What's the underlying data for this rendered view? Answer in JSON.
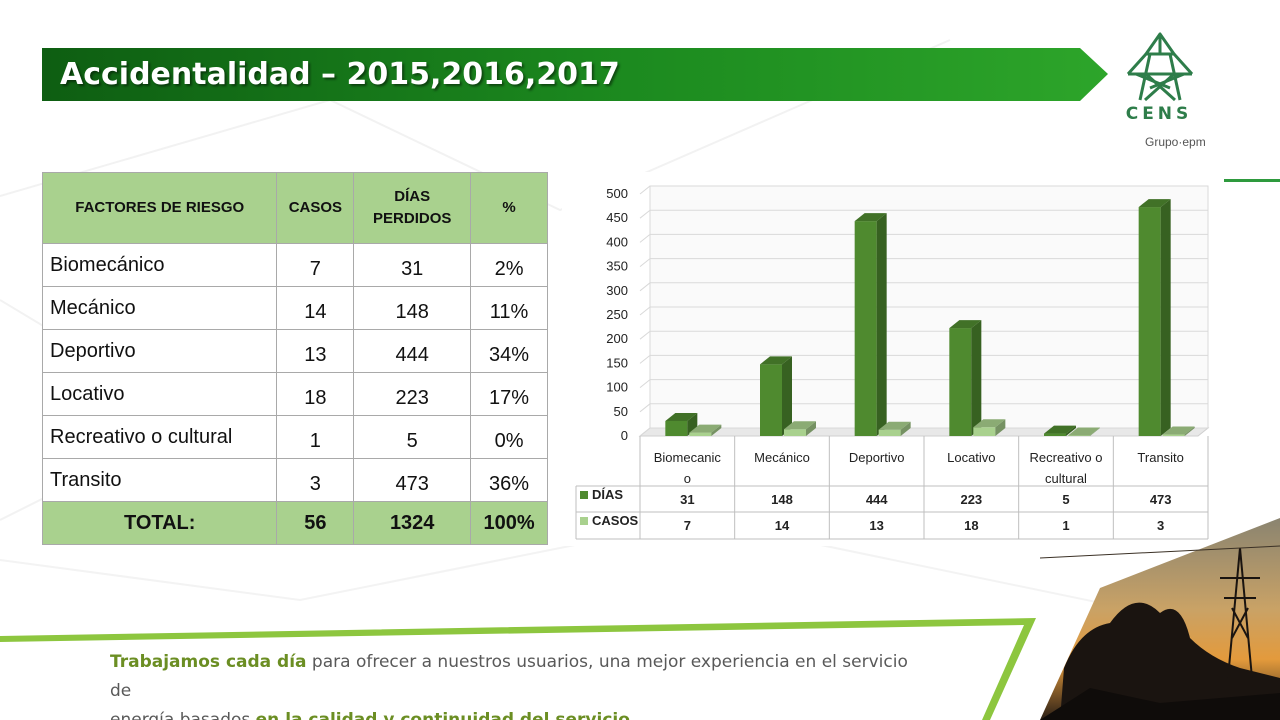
{
  "slide": {
    "title": "Accidentalidad – 2015,2016,2017",
    "colors": {
      "banner": "#1f8a1f",
      "banner_dark": "#0e5e12",
      "table_header": "#a9d18e",
      "accent_text": "#6b8e23"
    }
  },
  "logo": {
    "name": "CENS",
    "group": "Grupo·epm",
    "icon": "power-tower-icon"
  },
  "table": {
    "headers": {
      "factor": "FACTORES DE RIESGO",
      "casos": "CASOS",
      "dias_line1": "DÍAS",
      "dias_line2": "PERDIDOS",
      "pct": "%"
    },
    "rows": [
      {
        "factor": "Biomecánico",
        "casos": "7",
        "dias": "31",
        "pct": "2%"
      },
      {
        "factor": "Mecánico",
        "casos": "14",
        "dias": "148",
        "pct": "11%"
      },
      {
        "factor": "Deportivo",
        "casos": "13",
        "dias": "444",
        "pct": "34%"
      },
      {
        "factor": "Locativo",
        "casos": "18",
        "dias": "223",
        "pct": "17%"
      },
      {
        "factor": "Recreativo o cultural",
        "casos": "1",
        "dias": "5",
        "pct": "0%"
      },
      {
        "factor": "Transito",
        "casos": "3",
        "dias": "473",
        "pct": "36%"
      }
    ],
    "total": {
      "label": "TOTAL:",
      "casos": "56",
      "dias": "1324",
      "pct": "100%"
    }
  },
  "chart_data": {
    "type": "bar",
    "categories": [
      [
        "Biomecanic",
        "o"
      ],
      [
        "Mecánico"
      ],
      [
        "Deportivo"
      ],
      [
        "Locativo"
      ],
      [
        "Recreativo o",
        "cultural"
      ],
      [
        "Transito"
      ]
    ],
    "series": [
      {
        "name": "DÍAS",
        "values": [
          31,
          148,
          444,
          223,
          5,
          473
        ],
        "color": "#4f8a2f"
      },
      {
        "name": "CASOS",
        "values": [
          7,
          14,
          13,
          18,
          1,
          3
        ],
        "color": "#a9d18e"
      }
    ],
    "ylim": [
      0,
      500
    ],
    "yticks": [
      0,
      50,
      100,
      150,
      200,
      250,
      300,
      350,
      400,
      450,
      500
    ],
    "grid": true,
    "legend": "data-table-below",
    "style": "3d-column"
  },
  "footer": {
    "line1_bold": "Trabajamos cada día",
    "line1_rest": " para ofrecer a nuestros usuarios, una mejor experiencia en el servicio de",
    "line2_start": "energía basados ",
    "line2_bold": "en la calidad y continuidad del servicio",
    "line2_end": "."
  }
}
